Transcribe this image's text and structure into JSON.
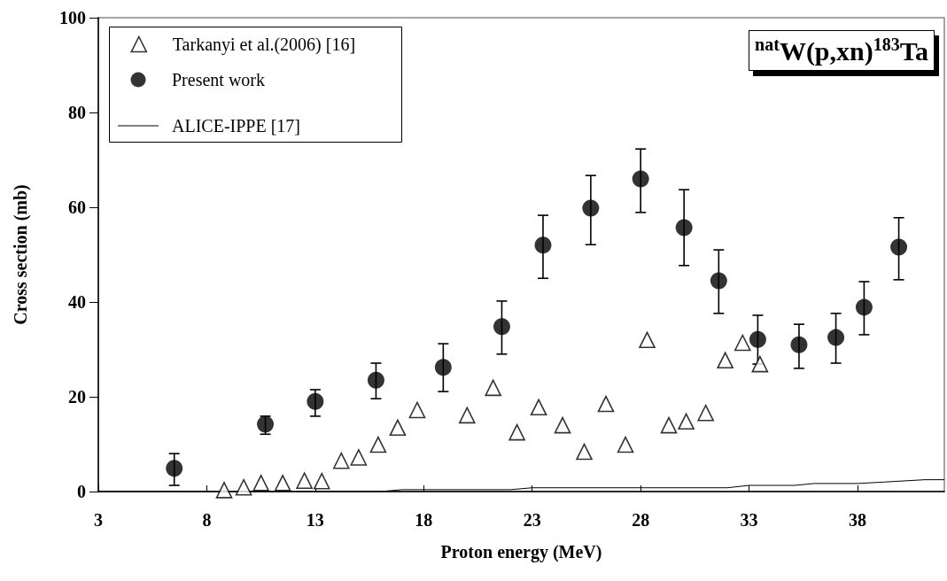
{
  "chart_data": {
    "type": "scatter",
    "title": "$^{nat}$W(p,xn)$^{183}$Ta",
    "xlabel": "Proton energy (MeV)",
    "ylabel": "Cross section (mb)",
    "xlim": [
      3,
      42
    ],
    "xticks": [
      3,
      8,
      13,
      18,
      23,
      28,
      33,
      38
    ],
    "ylim": [
      0,
      100
    ],
    "yticks": [
      0,
      20,
      40,
      60,
      80,
      100
    ],
    "grid": false,
    "legend": "top left",
    "series": [
      {
        "name": "Tarkanyi et al.(2006) [16]",
        "color": "#000000",
        "marker": "triangle",
        "x": [
          8.8,
          9.7,
          10.5,
          11.5,
          12.5,
          13.3,
          14.2,
          15.0,
          15.9,
          16.8,
          17.7,
          20.0,
          21.2,
          22.3,
          23.3,
          24.4,
          25.4,
          26.4,
          27.3,
          28.3,
          29.3,
          30.1,
          31.0,
          31.9,
          32.7,
          33.5
        ],
        "values": [
          0.3,
          0.9,
          1.8,
          1.8,
          2.3,
          2.2,
          6.5,
          7.2,
          9.9,
          13.5,
          17.2,
          16.1,
          21.9,
          12.5,
          17.8,
          14.0,
          8.4,
          18.5,
          9.9,
          32.0,
          14.0,
          14.8,
          16.6,
          27.7,
          31.4,
          26.9
        ]
      },
      {
        "name": "Present work",
        "color": "#000000",
        "marker": "circle",
        "x": [
          6.5,
          10.7,
          13.0,
          15.8,
          18.9,
          21.6,
          23.5,
          25.7,
          28.0,
          30.0,
          31.6,
          33.4,
          35.3,
          37.0,
          38.3,
          39.9
        ],
        "values": [
          4.9,
          14.2,
          19.0,
          23.5,
          26.2,
          34.8,
          52.0,
          59.8,
          66.0,
          55.7,
          44.5,
          32.1,
          31.0,
          32.5,
          38.9,
          51.6
        ],
        "errors": [
          [
            1.3,
            8.0
          ],
          [
            12.1,
            15.9
          ],
          [
            15.9,
            21.5
          ],
          [
            19.6,
            27.1
          ],
          [
            21.1,
            31.2
          ],
          [
            29.0,
            40.2
          ],
          [
            45.0,
            58.3
          ],
          [
            52.1,
            66.7
          ],
          [
            58.9,
            72.3
          ],
          [
            47.7,
            63.7
          ],
          [
            37.6,
            51.0
          ],
          [
            26.9,
            37.2
          ],
          [
            26.0,
            35.3
          ],
          [
            27.1,
            37.6
          ],
          [
            33.1,
            44.3
          ],
          [
            44.7,
            57.8
          ]
        ]
      },
      {
        "name": "ALICE-IPPE [17]",
        "type": "line",
        "color": "#000000",
        "marker": "none",
        "line_style": "solid",
        "x": [
          3,
          16,
          17,
          22,
          23,
          32,
          33,
          35.1,
          36,
          38,
          39.2,
          41.1,
          42
        ],
        "values": [
          0,
          0,
          0.4,
          0.4,
          0.8,
          0.8,
          1.3,
          1.3,
          1.7,
          1.7,
          2.0,
          2.5,
          2.5
        ]
      }
    ]
  }
}
